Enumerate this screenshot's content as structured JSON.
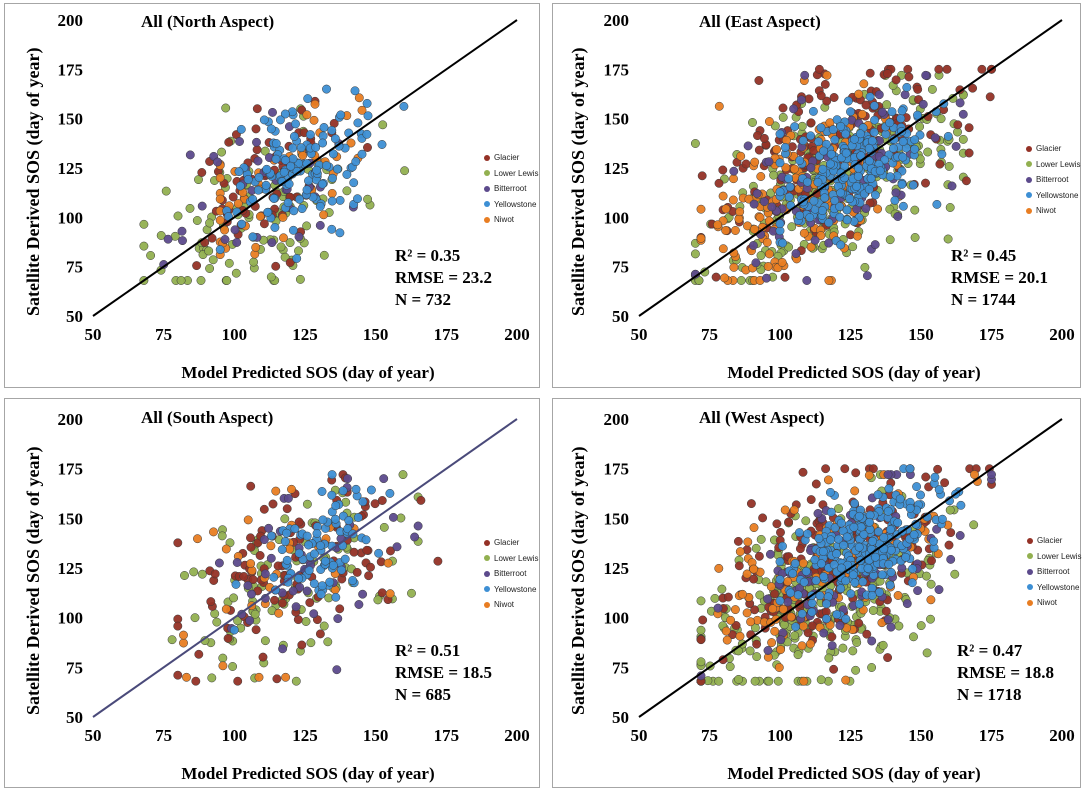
{
  "legend_title": "",
  "series_names": [
    "Glacier",
    "Lower Lewis",
    "Bitterroot",
    "Yellowstone",
    "Niwot"
  ],
  "series_colors": [
    "#943126",
    "#92b050",
    "#5c4a8c",
    "#3d8fd4",
    "#e87d22"
  ],
  "chart_data": [
    {
      "type": "scatter",
      "title": "All (North Aspect)",
      "xlabel": "Model Predicted SOS (day of year)",
      "ylabel": "Satellite Derived SOS (day of year)",
      "xlim": [
        50,
        200
      ],
      "ylim": [
        50,
        200
      ],
      "xticks": [
        "50",
        "75",
        "100",
        "125",
        "150",
        "175",
        "200"
      ],
      "yticks": [
        "50",
        "75",
        "100",
        "125",
        "150",
        "175",
        "200"
      ],
      "stats": {
        "r2": "R² = 0.35",
        "rmse": "RMSE = 23.2",
        "n": "N = 732"
      },
      "reference_line": "1:1",
      "legend_position": "right",
      "series": [
        {
          "name": "Glacier",
          "color": "#943126",
          "x_center": 110,
          "y_center": 120,
          "x_spread": 18,
          "y_spread": 22,
          "x_range": [
            75,
            170
          ],
          "y_range": [
            68,
            172
          ],
          "approx_n": 120
        },
        {
          "name": "Lower Lewis",
          "color": "#92b050",
          "x_center": 108,
          "y_center": 100,
          "x_spread": 20,
          "y_spread": 24,
          "x_range": [
            68,
            165
          ],
          "y_range": [
            68,
            162
          ],
          "approx_n": 200
        },
        {
          "name": "Bitterroot",
          "color": "#5c4a8c",
          "x_center": 110,
          "y_center": 115,
          "x_spread": 16,
          "y_spread": 22,
          "x_range": [
            75,
            160
          ],
          "y_range": [
            68,
            165
          ],
          "approx_n": 70
        },
        {
          "name": "Yellowstone",
          "color": "#3d8fd4",
          "x_center": 123,
          "y_center": 125,
          "x_spread": 12,
          "y_spread": 18,
          "x_range": [
            95,
            160
          ],
          "y_range": [
            75,
            175
          ],
          "approx_n": 250
        },
        {
          "name": "Niwot",
          "color": "#e87d22",
          "x_center": 115,
          "y_center": 120,
          "x_spread": 20,
          "y_spread": 22,
          "x_range": [
            95,
            160
          ],
          "y_range": [
            70,
            170
          ],
          "approx_n": 90
        }
      ]
    },
    {
      "type": "scatter",
      "title": "All (East Aspect)",
      "xlabel": "Model Predicted SOS (day of year)",
      "ylabel": "Satellite Derived SOS (day of year)",
      "xlim": [
        50,
        200
      ],
      "ylim": [
        50,
        200
      ],
      "xticks": [
        "50",
        "75",
        "100",
        "125",
        "150",
        "175",
        "200"
      ],
      "yticks": [
        "50",
        "75",
        "100",
        "125",
        "150",
        "175",
        "200"
      ],
      "stats": {
        "r2": "R² = 0.45",
        "rmse": "RMSE = 20.1",
        "n": "N = 1744"
      },
      "reference_line": "1:1",
      "legend_position": "right",
      "series": [
        {
          "name": "Glacier",
          "color": "#943126",
          "x_center": 120,
          "y_center": 135,
          "x_spread": 22,
          "y_spread": 25,
          "x_range": [
            72,
            175
          ],
          "y_range": [
            68,
            175
          ],
          "approx_n": 350
        },
        {
          "name": "Lower Lewis",
          "color": "#92b050",
          "x_center": 118,
          "y_center": 115,
          "x_spread": 22,
          "y_spread": 25,
          "x_range": [
            70,
            165
          ],
          "y_range": [
            68,
            172
          ],
          "approx_n": 500
        },
        {
          "name": "Bitterroot",
          "color": "#5c4a8c",
          "x_center": 118,
          "y_center": 120,
          "x_spread": 20,
          "y_spread": 25,
          "x_range": [
            70,
            165
          ],
          "y_range": [
            68,
            172
          ],
          "approx_n": 150
        },
        {
          "name": "Yellowstone",
          "color": "#3d8fd4",
          "x_center": 125,
          "y_center": 125,
          "x_spread": 12,
          "y_spread": 16,
          "x_range": [
            100,
            160
          ],
          "y_range": [
            85,
            172
          ],
          "approx_n": 450
        },
        {
          "name": "Niwot",
          "color": "#e87d22",
          "x_center": 105,
          "y_center": 110,
          "x_spread": 18,
          "y_spread": 22,
          "x_range": [
            72,
            170
          ],
          "y_range": [
            68,
            172
          ],
          "approx_n": 300
        }
      ]
    },
    {
      "type": "scatter",
      "title": "All (South Aspect)",
      "xlabel": "Model Predicted SOS (day of year)",
      "ylabel": "Satellite Derived SOS (day of year)",
      "xlim": [
        50,
        200
      ],
      "ylim": [
        50,
        200
      ],
      "xticks": [
        "50",
        "75",
        "100",
        "125",
        "150",
        "175",
        "200"
      ],
      "yticks": [
        "50",
        "75",
        "100",
        "125",
        "150",
        "175",
        "200"
      ],
      "stats": {
        "r2": "R² = 0.51",
        "rmse": "RMSE = 18.5",
        "n": "N = 685"
      },
      "reference_line": "1:1",
      "legend_position": "right",
      "series": [
        {
          "name": "Glacier",
          "color": "#943126",
          "x_center": 122,
          "y_center": 125,
          "x_spread": 22,
          "y_spread": 28,
          "x_range": [
            80,
            172
          ],
          "y_range": [
            68,
            172
          ],
          "approx_n": 200
        },
        {
          "name": "Lower Lewis",
          "color": "#92b050",
          "x_center": 118,
          "y_center": 115,
          "x_spread": 20,
          "y_spread": 25,
          "x_range": [
            78,
            165
          ],
          "y_range": [
            68,
            172
          ],
          "approx_n": 180
        },
        {
          "name": "Bitterroot",
          "color": "#5c4a8c",
          "x_center": 125,
          "y_center": 125,
          "x_spread": 18,
          "y_spread": 25,
          "x_range": [
            85,
            165
          ],
          "y_range": [
            68,
            170
          ],
          "approx_n": 80
        },
        {
          "name": "Yellowstone",
          "color": "#3d8fd4",
          "x_center": 130,
          "y_center": 135,
          "x_spread": 12,
          "y_spread": 16,
          "x_range": [
            100,
            160
          ],
          "y_range": [
            90,
            172
          ],
          "approx_n": 160
        },
        {
          "name": "Niwot",
          "color": "#e87d22",
          "x_center": 115,
          "y_center": 120,
          "x_spread": 22,
          "y_spread": 28,
          "x_range": [
            82,
            165
          ],
          "y_range": [
            70,
            175
          ],
          "approx_n": 65
        }
      ]
    },
    {
      "type": "scatter",
      "title": "All (West Aspect)",
      "xlabel": "Model Predicted SOS (day of year)",
      "ylabel": "Satellite Derived SOS (day of year)",
      "xlim": [
        50,
        200
      ],
      "ylim": [
        50,
        200
      ],
      "xticks": [
        "50",
        "75",
        "100",
        "125",
        "150",
        "175",
        "200"
      ],
      "yticks": [
        "50",
        "75",
        "100",
        "125",
        "150",
        "175",
        "200"
      ],
      "stats": {
        "r2": "R² = 0.47",
        "rmse": "RMSE = 18.8",
        "n": "N = 1718"
      },
      "reference_line": "1:1",
      "legend_position": "right",
      "series": [
        {
          "name": "Glacier",
          "color": "#943126",
          "x_center": 120,
          "y_center": 130,
          "x_spread": 22,
          "y_spread": 25,
          "x_range": [
            72,
            175
          ],
          "y_range": [
            68,
            175
          ],
          "approx_n": 350
        },
        {
          "name": "Lower Lewis",
          "color": "#92b050",
          "x_center": 115,
          "y_center": 110,
          "x_spread": 22,
          "y_spread": 25,
          "x_range": [
            72,
            175
          ],
          "y_range": [
            68,
            172
          ],
          "approx_n": 500
        },
        {
          "name": "Bitterroot",
          "color": "#5c4a8c",
          "x_center": 120,
          "y_center": 125,
          "x_spread": 20,
          "y_spread": 25,
          "x_range": [
            72,
            175
          ],
          "y_range": [
            68,
            172
          ],
          "approx_n": 150
        },
        {
          "name": "Yellowstone",
          "color": "#3d8fd4",
          "x_center": 130,
          "y_center": 135,
          "x_spread": 13,
          "y_spread": 15,
          "x_range": [
            100,
            175
          ],
          "y_range": [
            90,
            175
          ],
          "approx_n": 500
        },
        {
          "name": "Niwot",
          "color": "#e87d22",
          "x_center": 115,
          "y_center": 120,
          "x_spread": 22,
          "y_spread": 25,
          "x_range": [
            75,
            170
          ],
          "y_range": [
            68,
            172
          ],
          "approx_n": 220
        }
      ]
    }
  ]
}
